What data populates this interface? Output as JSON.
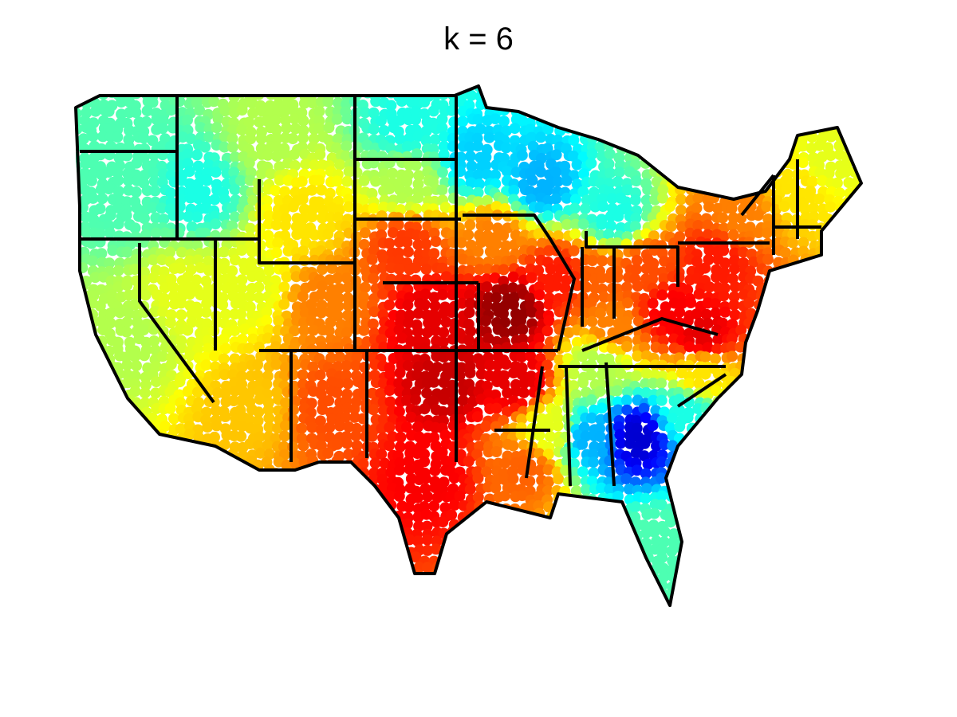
{
  "title": "k = 6"
}
